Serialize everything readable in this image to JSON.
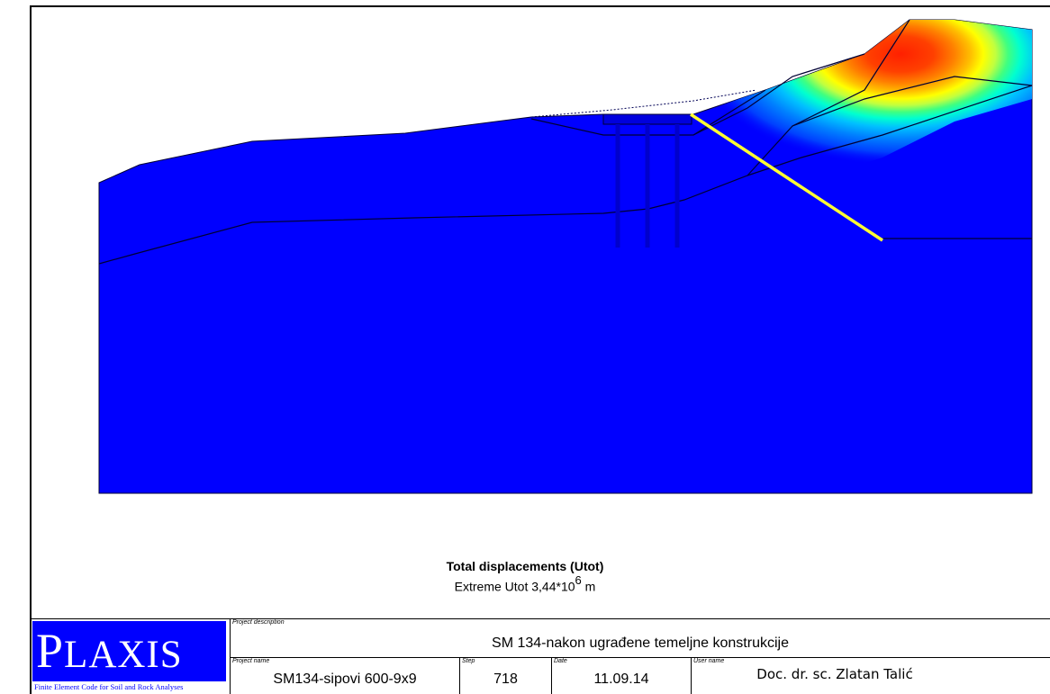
{
  "colors": {
    "soil": "#0000ff",
    "pile": "#0000cc",
    "geometry_lines": "#000033",
    "interface": "#ffff33",
    "contour_scale": [
      "#0040ff",
      "#0080ff",
      "#00c0ff",
      "#00ffd0",
      "#40ff80",
      "#c0ff40",
      "#ffff00",
      "#ffc000",
      "#ff8000",
      "#ff4000",
      "#ff2000"
    ]
  },
  "caption": {
    "title": "Total displacements (Utot)",
    "extreme_prefix": "Extreme Utot 3,44*10",
    "extreme_exponent": "6",
    "extreme_unit": " m"
  },
  "logo": {
    "first_letter": "P",
    "rest": "LAXIS",
    "tagline": "Finite Element Code for Soil and Rock Analyses"
  },
  "title_block": {
    "project_description_label": "Project description",
    "project_description": "SM 134-nakon ugrađene temeljne konstrukcije",
    "project_name_label": "Project name",
    "project_name": "SM134-sipovi 600-9x9",
    "step_label": "Step",
    "step": "718",
    "date_label": "Date",
    "date": "11.09.14",
    "user_name_label": "User name",
    "user_name": "Doc. dr. sc. Zlatan Talić"
  }
}
